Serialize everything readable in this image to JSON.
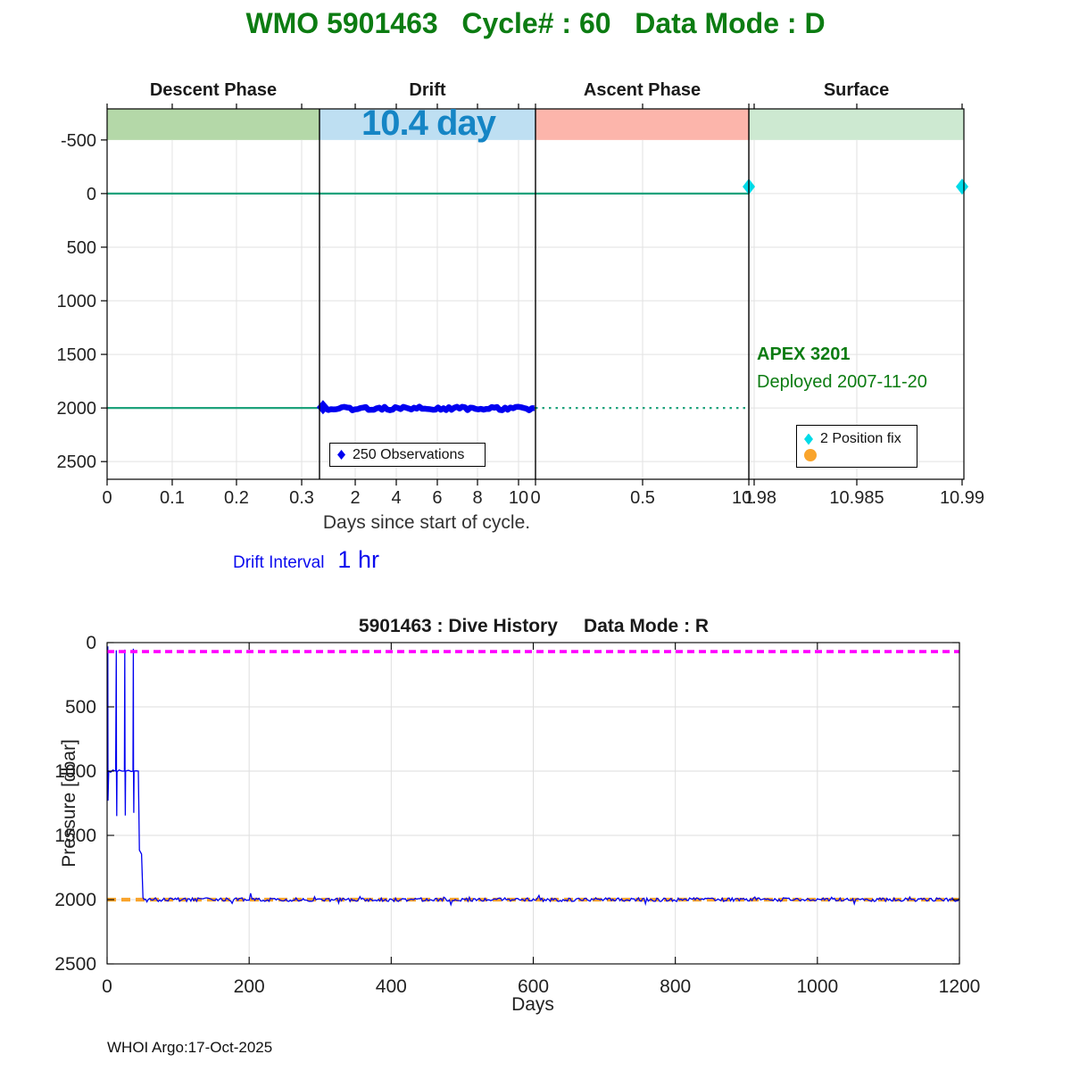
{
  "page": {
    "title": "WMO 5901463   Cycle# : 60   Data Mode : D",
    "footer": "WHOI Argo:17-Oct-2025",
    "drift_interval_label": "Drift Interval",
    "drift_interval_value": "1 hr"
  },
  "colors": {
    "title_green": "#0c7c12",
    "reference_teal": "#1ea27c",
    "series_blue": "#0000f0",
    "position_fix_cyan": "#00dbe8",
    "park_orange": "#f9a42c",
    "surface_magenta": "#ff00ff",
    "duration_blue": "#1585c5",
    "grid_gray": "#e2e2e2"
  },
  "chart_data": [
    {
      "id": "cycle-phase-chart",
      "type": "line",
      "xlabel": "Days since start of cycle.",
      "ylabel": "",
      "ylim": [
        -790,
        2665
      ],
      "y_axis_reversed": true,
      "y_ticks": [
        -500,
        0,
        500,
        1000,
        1500,
        2000,
        2500
      ],
      "grid": true,
      "phases": [
        {
          "label": "Descent Phase",
          "band_color": "#b4d8a8",
          "span": [
            0,
            0.2479
          ],
          "ticks": [
            {
              "label": "0",
              "pos": 0.0
            },
            {
              "label": "0.1",
              "pos": 0.076
            },
            {
              "label": "0.2",
              "pos": 0.151
            },
            {
              "label": "0.3",
              "pos": 0.2271
            }
          ]
        },
        {
          "label": "Drift",
          "band_color": "#bedff2",
          "span": [
            0.2479,
            0.5
          ],
          "ticks": [
            {
              "label": "2",
              "pos": 0.2896
            },
            {
              "label": "4",
              "pos": 0.3375
            },
            {
              "label": "6",
              "pos": 0.3854
            },
            {
              "label": "8",
              "pos": 0.4323
            },
            {
              "label": "10",
              "pos": 0.4802
            }
          ]
        },
        {
          "label": "Ascent Phase",
          "band_color": "#fcb5ab",
          "span": [
            0.5,
            0.749
          ],
          "ticks": [
            {
              "label": "0",
              "pos": 0.5
            },
            {
              "label": "0.5",
              "pos": 0.625
            },
            {
              "label": "1",
              "pos": 0.749
            }
          ]
        },
        {
          "label": "Surface",
          "band_color": "#cde9d1",
          "span": [
            0.749,
            1.0
          ],
          "ticks": [
            {
              "label": "10.98",
              "pos": 0.7552
            },
            {
              "label": "10.985",
              "pos": 0.875
            },
            {
              "label": "10.99",
              "pos": 0.9979
            }
          ]
        }
      ],
      "reference_lines": [
        {
          "value": 0,
          "style": "solid",
          "color": "#1ea27c",
          "span": [
            0,
            0.749
          ]
        },
        {
          "value": 2000,
          "style": "solid",
          "color": "#1ea27c",
          "span": [
            0,
            0.5
          ]
        },
        {
          "value": 2000,
          "style": "dotted",
          "color": "#1ea27c",
          "span": [
            0.5,
            0.749
          ]
        }
      ],
      "series": [
        {
          "name": "drift_observations",
          "marker": "diamond",
          "color": "#0000f0",
          "observations": 250,
          "pressure_dbar": 2005,
          "span": [
            0.252,
            0.5
          ]
        },
        {
          "name": "position_fixes",
          "marker": "diamond",
          "color": "#00dbe8",
          "points": [
            {
              "pos": 0.749,
              "value": -65
            },
            {
              "pos": 0.9979,
              "value": -65
            }
          ]
        }
      ],
      "legends": [
        {
          "entries": [
            {
              "marker": "diamond",
              "color": "#0000f0",
              "label": "250 Observations"
            }
          ]
        },
        {
          "entries": [
            {
              "marker": "diamond",
              "color": "#00dbe8",
              "label": "2 Position fix"
            },
            {
              "marker": "circle",
              "color": "#f9a42c",
              "label": ""
            }
          ]
        }
      ],
      "annotations": {
        "drift_duration": "10.4 day",
        "float_model": "APEX 3201",
        "deployed": "Deployed 2007-11-20"
      }
    },
    {
      "id": "dive-history-chart",
      "type": "line",
      "title": "5901463 : Dive History     Data Mode : R",
      "xlabel": "Days",
      "ylabel": "Pressure [dbar]",
      "xlim": [
        0,
        1200
      ],
      "ylim": [
        0,
        2500
      ],
      "y_axis_reversed": true,
      "x_ticks": [
        0,
        200,
        400,
        600,
        800,
        1000,
        1200
      ],
      "y_ticks": [
        0,
        500,
        1000,
        1500,
        2000,
        2500
      ],
      "reference_lines": [
        {
          "value": 70,
          "style": "dashed",
          "color": "#ff00ff"
        },
        {
          "value": 2000,
          "style": "dashed",
          "color": "#f9a42c"
        }
      ],
      "series": [
        {
          "name": "dive_pressure",
          "color": "#0000f0",
          "breakpoints": [
            [
              1,
              30
            ],
            [
              1.3,
              1230
            ],
            [
              2.2,
              1000
            ],
            [
              5,
              1008
            ],
            [
              8,
              992
            ],
            [
              12,
              1000
            ],
            [
              12.9,
              60
            ],
            [
              13.2,
              1008
            ],
            [
              13.6,
              1350
            ],
            [
              14,
              1005
            ],
            [
              17,
              992
            ],
            [
              21,
              1000
            ],
            [
              24.4,
              1000
            ],
            [
              24.9,
              55
            ],
            [
              25.2,
              1008
            ],
            [
              25.6,
              1345
            ],
            [
              26,
              1000
            ],
            [
              30,
              994
            ],
            [
              34,
              1003
            ],
            [
              36.4,
              1000
            ],
            [
              36.9,
              48
            ],
            [
              37.2,
              1010
            ],
            [
              37.6,
              1325
            ],
            [
              38,
              1000
            ],
            [
              41,
              998
            ],
            [
              44,
              1000
            ],
            [
              45.5,
              1615
            ],
            [
              48.5,
              1645
            ],
            [
              50.5,
              1985
            ],
            [
              52,
              2000
            ]
          ],
          "park_phase": {
            "pressure": 2000,
            "noise_dbar": 14,
            "from_day": 52,
            "until_day": 1200
          }
        }
      ]
    }
  ]
}
